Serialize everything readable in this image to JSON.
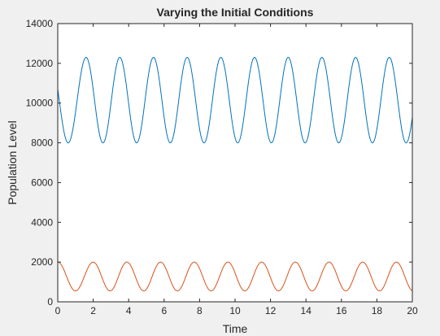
{
  "chart_data": {
    "type": "line",
    "title": "Varying the Initial Conditions",
    "xlabel": "Time",
    "ylabel": "Population Level",
    "xlim": [
      0,
      20
    ],
    "ylim": [
      0,
      14000
    ],
    "xticks": [
      "0",
      "2",
      "4",
      "6",
      "8",
      "10",
      "12",
      "14",
      "16",
      "18",
      "20"
    ],
    "yticks": [
      "0",
      "2000",
      "4000",
      "6000",
      "8000",
      "10000",
      "12000",
      "14000"
    ],
    "grid": false,
    "series": [
      {
        "color": "#0072BD",
        "start": 10700,
        "min": 8000,
        "max": 12300,
        "period": 1.9,
        "first_max_x": 1.6
      },
      {
        "color": "#D95319",
        "start": 2000,
        "min": 550,
        "max": 2000,
        "period": 1.9,
        "first_max_x": 2.0
      }
    ]
  }
}
